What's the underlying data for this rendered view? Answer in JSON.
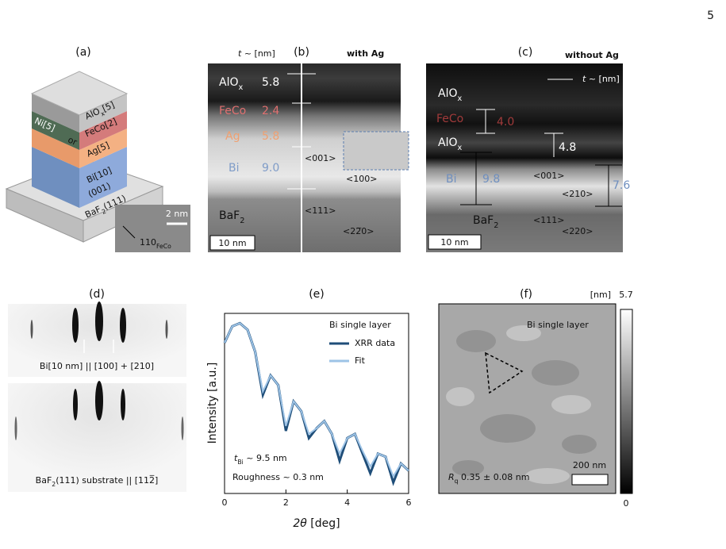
{
  "page_number": "5",
  "panel_a": {
    "label": "(a)",
    "layers": {
      "alox": {
        "main": "AlO",
        "sub": "x",
        "rest": "[5]"
      },
      "feco": "FeCo[2]",
      "ni": "Ni[5]",
      "or": "or",
      "ag": "Ag[5]",
      "bi": "Bi[10]",
      "bi_orient": "(001)",
      "baf2": {
        "main": "BaF",
        "sub": "2",
        "rest": "(111)"
      }
    },
    "inset_scale": "2 nm",
    "inset_direction": {
      "main": "110",
      "sub": "FeCo"
    }
  },
  "panel_b": {
    "label": "(b)",
    "title": "with Ag",
    "thickness_header": {
      "t": "t",
      "rest": " ~ [nm]"
    },
    "layers": [
      {
        "name": "AlO",
        "sub": "x",
        "t": "5.8"
      },
      {
        "name": "FeCo",
        "t": "2.4"
      },
      {
        "name": "Ag",
        "t": "5.8"
      },
      {
        "name": "Bi",
        "t": "9.0"
      },
      {
        "name": "BaF",
        "sub": "2"
      }
    ],
    "directions": [
      "<001>",
      "<100>",
      "<111>",
      "<22̅0>"
    ],
    "scale": "10 nm"
  },
  "panel_c": {
    "label": "(c)",
    "title": "without Ag",
    "thickness_header": {
      "t": "t",
      "rest": " ~ [nm]"
    },
    "layers": [
      {
        "name": "AlO",
        "sub": "x"
      },
      {
        "name": "FeCo",
        "t": "4.0"
      },
      {
        "name": "AlO",
        "sub": "x",
        "t": "4.8"
      },
      {
        "name": "Bi",
        "t": "9.8"
      },
      {
        "name": "BaF",
        "sub": "2"
      }
    ],
    "extra_thickness": "7.6",
    "directions": [
      "<001>",
      "<210>",
      "<111>",
      "<220>"
    ],
    "scale": "10 nm"
  },
  "panel_d": {
    "label": "(d)",
    "top_caption": "Bi[10 nm] || [100] + [210]",
    "bottom_caption": {
      "main": "BaF",
      "sub": "2",
      "rest": "(111) substrate || [112̅]"
    }
  },
  "panel_e": {
    "label": "(e)",
    "type": "line",
    "annotation_title": "Bi single layer",
    "thickness": {
      "t": "t",
      "sub": "Bi",
      "rest": " ~ 9.5 nm"
    },
    "roughness": "Roughness ~ 0.3 nm",
    "xlabel": {
      "italic": "2θ",
      "rest": " [deg]"
    },
    "ylabel": "Intensity [a.u.]",
    "x": [
      0,
      0.25,
      0.5,
      0.75,
      1,
      1.25,
      1.5,
      1.75,
      2,
      2.25,
      2.5,
      2.75,
      3,
      3.25,
      3.5,
      3.75,
      4,
      4.25,
      4.5,
      4.75,
      5,
      5.25,
      5.5,
      5.75,
      6
    ],
    "series": [
      {
        "name": "XRR data",
        "color": "#1f4e79",
        "values": [
          0.25,
          0.8,
          1,
          0.63,
          0.13,
          0.0063,
          0.025,
          0.0126,
          0.0005,
          0.004,
          0.002,
          0.0003,
          0.0006,
          0.001,
          0.0004,
          6e-05,
          0.0003,
          0.0004,
          0.0001,
          2.5e-05,
          0.0001,
          8e-05,
          1.3e-05,
          5e-05,
          3e-05
        ]
      },
      {
        "name": "Fit",
        "color": "#9dc3e6",
        "values": [
          0.25,
          0.8,
          1,
          0.63,
          0.13,
          0.008,
          0.025,
          0.0126,
          0.0007,
          0.004,
          0.002,
          0.0004,
          0.0006,
          0.001,
          0.0004,
          0.0001,
          0.0003,
          0.0004,
          0.00012,
          4e-05,
          0.0001,
          8e-05,
          2e-05,
          5e-05,
          3e-05
        ]
      }
    ],
    "xlim": [
      0,
      6
    ],
    "xticks": [
      0,
      2,
      4,
      6
    ],
    "ylim": [
      6e-06,
      2
    ],
    "log_scale": true,
    "legend": "top-right"
  },
  "panel_f": {
    "label": "(f)",
    "title": "Bi single layer",
    "colorbar": {
      "unit": "[nm]",
      "max": "5.7",
      "min": "0"
    },
    "roughness": {
      "main": "R",
      "sub": "q",
      "rest": " 0.35 ± 0.08 nm"
    },
    "scale": "200 nm"
  }
}
